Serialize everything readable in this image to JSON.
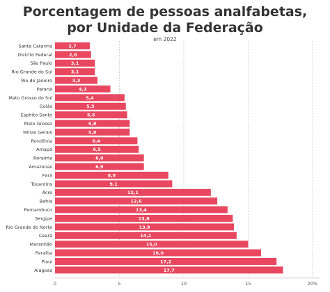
{
  "title_line1": "Porcentagem de pessoas analfabetas,",
  "title_line2": "por Unidade da Federação",
  "subtitle": "em 2022",
  "chart_data": {
    "type": "bar",
    "orientation": "horizontal",
    "title": "Porcentagem de pessoas analfabetas, por Unidade da Federação",
    "subtitle": "em 2022",
    "xlim": [
      0,
      20
    ],
    "xticks": [
      0,
      5,
      10,
      15,
      20
    ],
    "xtick_labels": [
      "0",
      "5",
      "10",
      "15",
      "20%"
    ],
    "grid": "vertical dashed",
    "bar_color": "#e8475f",
    "categories": [
      "Santa Catarina",
      "Distrito Federal",
      "São Paulo",
      "Rio Grande do Sul",
      "Rio de Janeiro",
      "Paraná",
      "Mato Grosso do Sul",
      "Goiás",
      "Espírito Santo",
      "Mato Grosso",
      "Minas Gerais",
      "Rondônia",
      "Amapá",
      "Roraima",
      "Amazonas",
      "Pará",
      "Tocantins",
      "Acre",
      "Bahia",
      "Pernambuco",
      "Sergipe",
      "Rio Grande do Norte",
      "Ceará",
      "Maranhão",
      "Paraíba",
      "Piauí",
      "Alagoas"
    ],
    "values": [
      2.7,
      2.8,
      3.1,
      3.1,
      3.3,
      4.3,
      5.4,
      5.5,
      5.6,
      5.8,
      5.8,
      6.4,
      6.5,
      6.9,
      6.9,
      8.8,
      9.1,
      12.1,
      12.6,
      13.4,
      13.8,
      13.9,
      14.1,
      15.0,
      16.0,
      17.2,
      17.7
    ],
    "value_labels": [
      "2,7",
      "2,8",
      "3,1",
      "3,1",
      "3,3",
      "4,3",
      "5,4",
      "5,5",
      "5,6",
      "5,8",
      "5,8",
      "6,4",
      "6,5",
      "6,9",
      "6,9",
      "8,8",
      "9,1",
      "12,1",
      "12,6",
      "13,4",
      "13,8",
      "13,9",
      "14,1",
      "15,0",
      "16,0",
      "17,2",
      "17,7"
    ]
  }
}
